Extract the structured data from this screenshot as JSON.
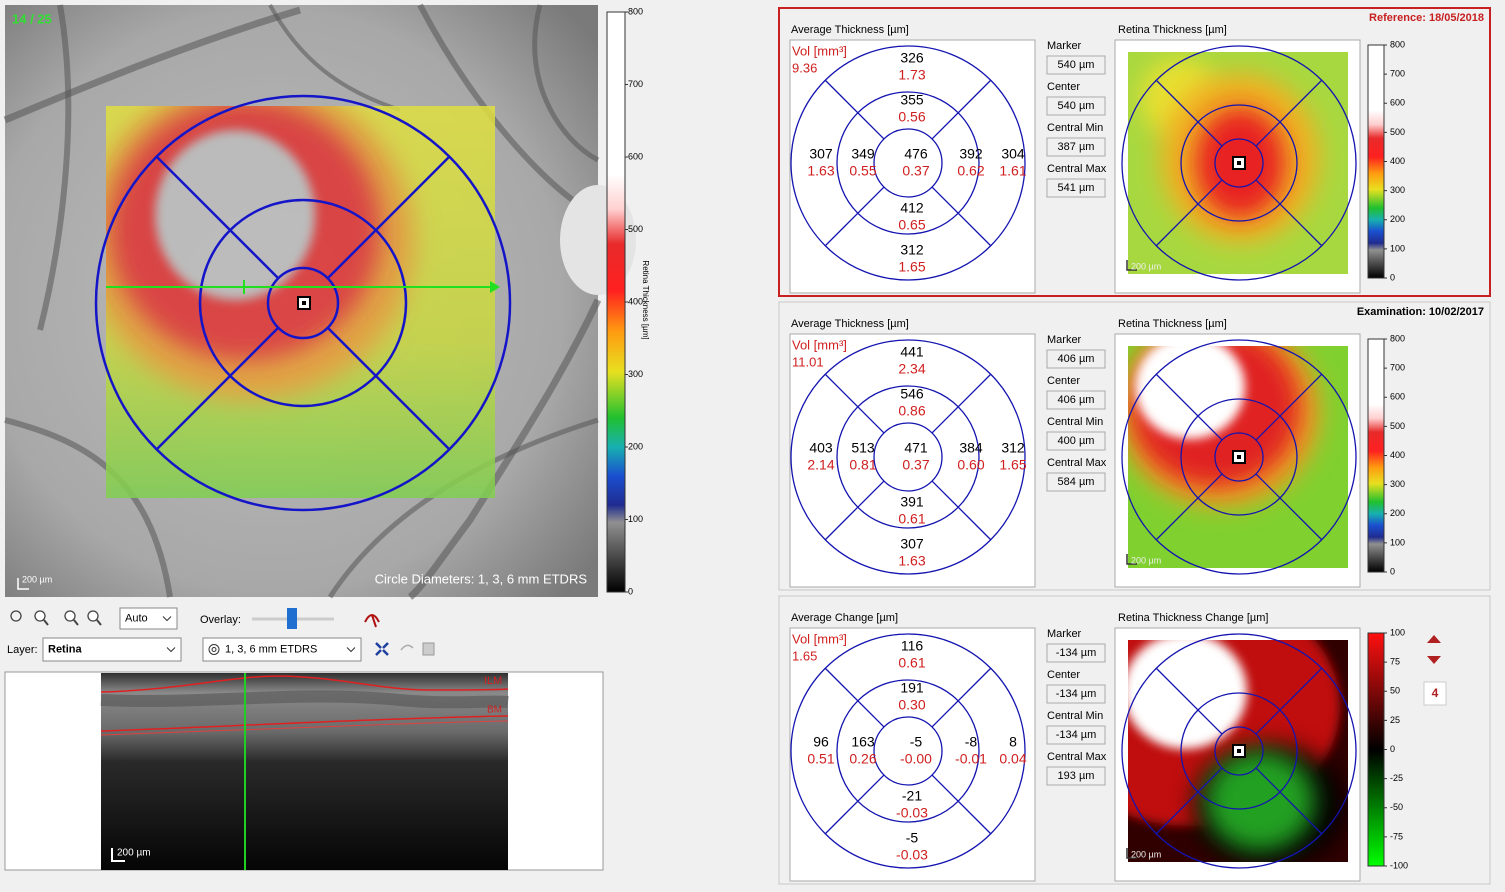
{
  "fundus": {
    "counter": "14 / 25",
    "scale": "200 µm",
    "grid_caption": "Circle Diameters: 1, 3, 6 mm ETDRS",
    "colorbar": {
      "title": "Retina Thickness [µm]",
      "ticks": [
        0,
        100,
        200,
        300,
        400,
        500,
        600,
        700,
        800
      ]
    }
  },
  "toolbar": {
    "zoom": "Auto",
    "overlay": "Overlay:",
    "layer_label": "Layer:",
    "layer": "Retina",
    "grid": "1, 3, 6 mm ETDRS"
  },
  "bscan": {
    "top_layer": "ILM",
    "bottom_layer": "BM",
    "scale": "200 µm"
  },
  "panels": [
    {
      "header": "Reference: 18/05/2018",
      "grid_title": "Average Thickness [µm]",
      "vol_label": "Vol [mm³]",
      "vol": "9.36",
      "sectors": [
        {
          "thickness": "326",
          "volume": "1.73"
        },
        {
          "thickness": "355",
          "volume": "0.56"
        },
        {
          "thickness": "307",
          "volume": "1.63"
        },
        {
          "thickness": "349",
          "volume": "0.55"
        },
        {
          "thickness": "476",
          "volume": "0.37"
        },
        {
          "thickness": "392",
          "volume": "0.62"
        },
        {
          "thickness": "304",
          "volume": "1.61"
        },
        {
          "thickness": "412",
          "volume": "0.65"
        },
        {
          "thickness": "312",
          "volume": "1.65"
        }
      ],
      "stats": [
        {
          "label": "Marker",
          "value": "540 µm"
        },
        {
          "label": "Center",
          "value": "540 µm"
        },
        {
          "label": "Central Min",
          "value": "387 µm"
        },
        {
          "label": "Central Max",
          "value": "541 µm"
        }
      ],
      "map_title": "Retina Thickness [µm]",
      "scale": "200 µm",
      "colorbar": [
        0,
        100,
        200,
        300,
        400,
        500,
        600,
        700,
        800
      ]
    },
    {
      "header": "Examination: 10/02/2017",
      "grid_title": "Average Thickness [µm]",
      "vol_label": "Vol [mm³]",
      "vol": "11.01",
      "sectors": [
        {
          "thickness": "441",
          "volume": "2.34"
        },
        {
          "thickness": "546",
          "volume": "0.86"
        },
        {
          "thickness": "403",
          "volume": "2.14"
        },
        {
          "thickness": "513",
          "volume": "0.81"
        },
        {
          "thickness": "471",
          "volume": "0.37"
        },
        {
          "thickness": "384",
          "volume": "0.60"
        },
        {
          "thickness": "312",
          "volume": "1.65"
        },
        {
          "thickness": "391",
          "volume": "0.61"
        },
        {
          "thickness": "307",
          "volume": "1.63"
        }
      ],
      "stats": [
        {
          "label": "Marker",
          "value": "406 µm"
        },
        {
          "label": "Center",
          "value": "406 µm"
        },
        {
          "label": "Central Min",
          "value": "400 µm"
        },
        {
          "label": "Central Max",
          "value": "584 µm"
        }
      ],
      "map_title": "Retina Thickness [µm]",
      "scale": "200 µm",
      "colorbar": [
        0,
        100,
        200,
        300,
        400,
        500,
        600,
        700,
        800
      ]
    },
    {
      "grid_title": "Average Change [µm]",
      "vol_label": "Vol [mm³]",
      "vol": "1.65",
      "sectors": [
        {
          "thickness": "116",
          "volume": "0.61"
        },
        {
          "thickness": "191",
          "volume": "0.30"
        },
        {
          "thickness": "96",
          "volume": "0.51"
        },
        {
          "thickness": "163",
          "volume": "0.26"
        },
        {
          "thickness": "-5",
          "volume": "-0.00"
        },
        {
          "thickness": "-8",
          "volume": "-0.01"
        },
        {
          "thickness": "8",
          "volume": "0.04"
        },
        {
          "thickness": "-21",
          "volume": "-0.03"
        },
        {
          "thickness": "-5",
          "volume": "-0.03"
        }
      ],
      "stats": [
        {
          "label": "Marker",
          "value": "-134 µm"
        },
        {
          "label": "Center",
          "value": "-134 µm"
        },
        {
          "label": "Central Min",
          "value": "-134 µm"
        },
        {
          "label": "Central Max",
          "value": "193 µm"
        }
      ],
      "map_title": "Retina Thickness Change [µm]",
      "scale": "200 µm",
      "colorbar": [
        -100,
        -75,
        -50,
        -25,
        0,
        25,
        50,
        75,
        100
      ]
    }
  ],
  "change_step": "4"
}
